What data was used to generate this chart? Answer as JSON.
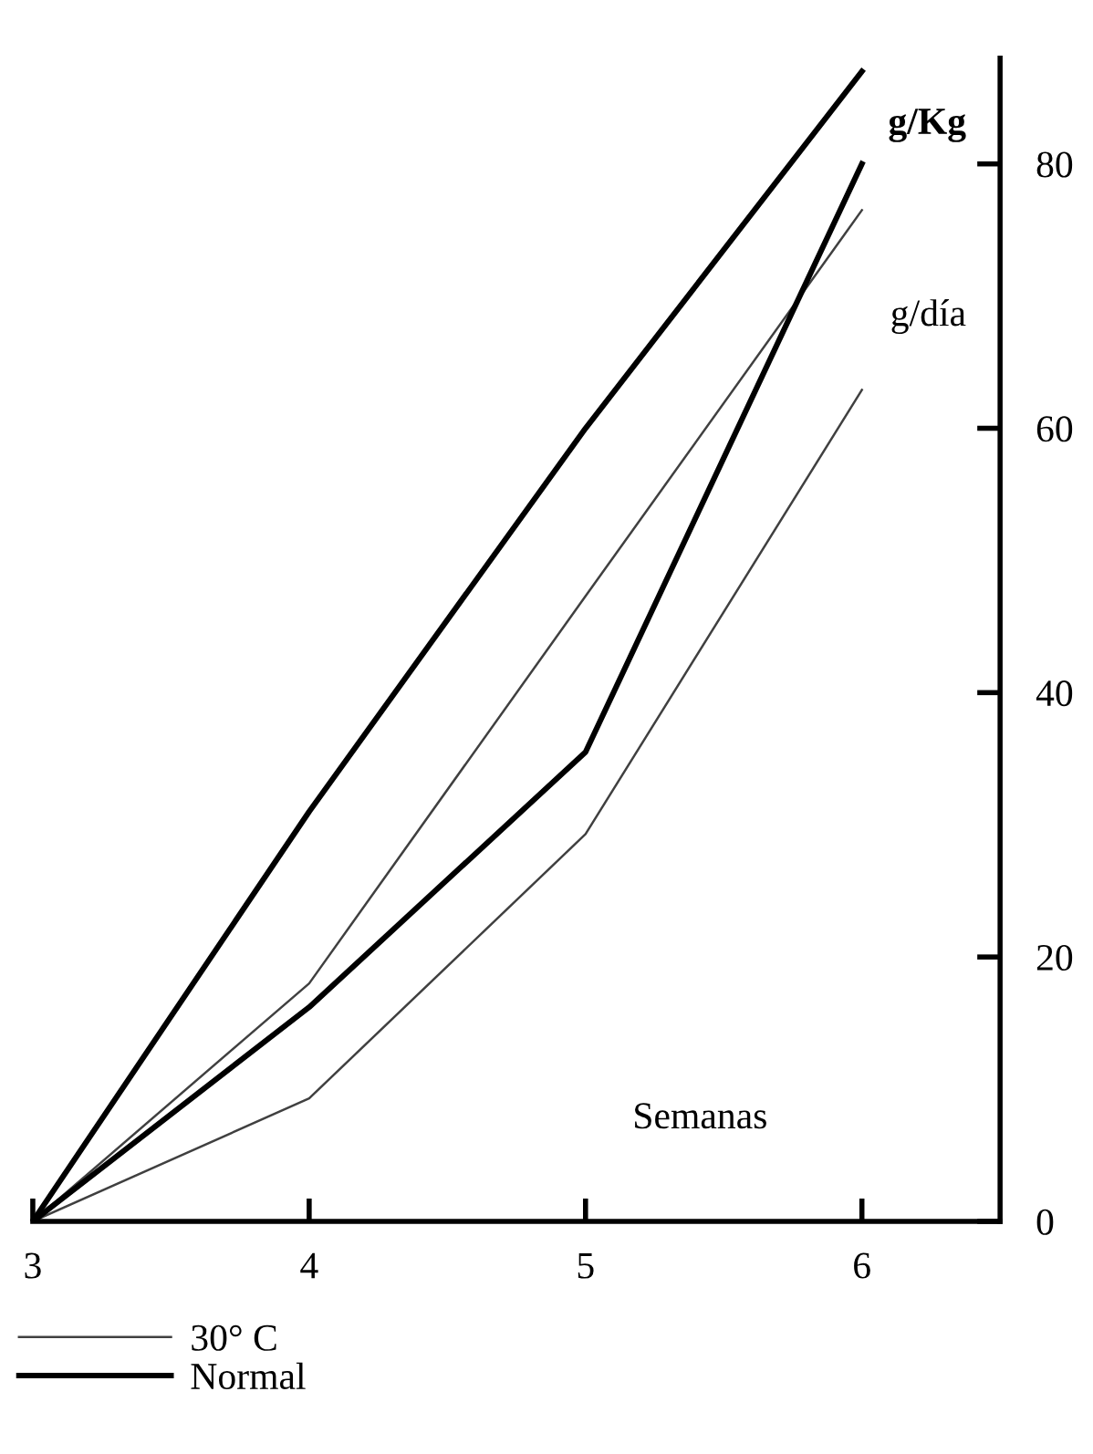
{
  "chart_data": {
    "type": "line",
    "xlabel": "Semanas",
    "ylabel": "g/Kg",
    "x": [
      3,
      4,
      5,
      6
    ],
    "xlim": [
      3,
      6.5
    ],
    "xticks": [
      3,
      4,
      5,
      6
    ],
    "ylim": [
      0,
      88
    ],
    "yticks": [
      0,
      20,
      40,
      60,
      80
    ],
    "series": [
      {
        "name": "30° C",
        "color": "#404040",
        "values": [
          0,
          18,
          47.3,
          76.5
        ]
      },
      {
        "color": "#404040",
        "values": [
          0,
          9.3,
          29.3,
          62.9
        ]
      },
      {
        "name": "Normal",
        "color": "#000000",
        "values": [
          0,
          31,
          60,
          87
        ]
      },
      {
        "color": "#000000",
        "values": [
          0,
          16.2,
          35.5,
          80
        ]
      }
    ],
    "annotations": [
      "g/día"
    ],
    "legend": "bottom left",
    "grid": false,
    "marker": "none",
    "line_style": "solid"
  }
}
